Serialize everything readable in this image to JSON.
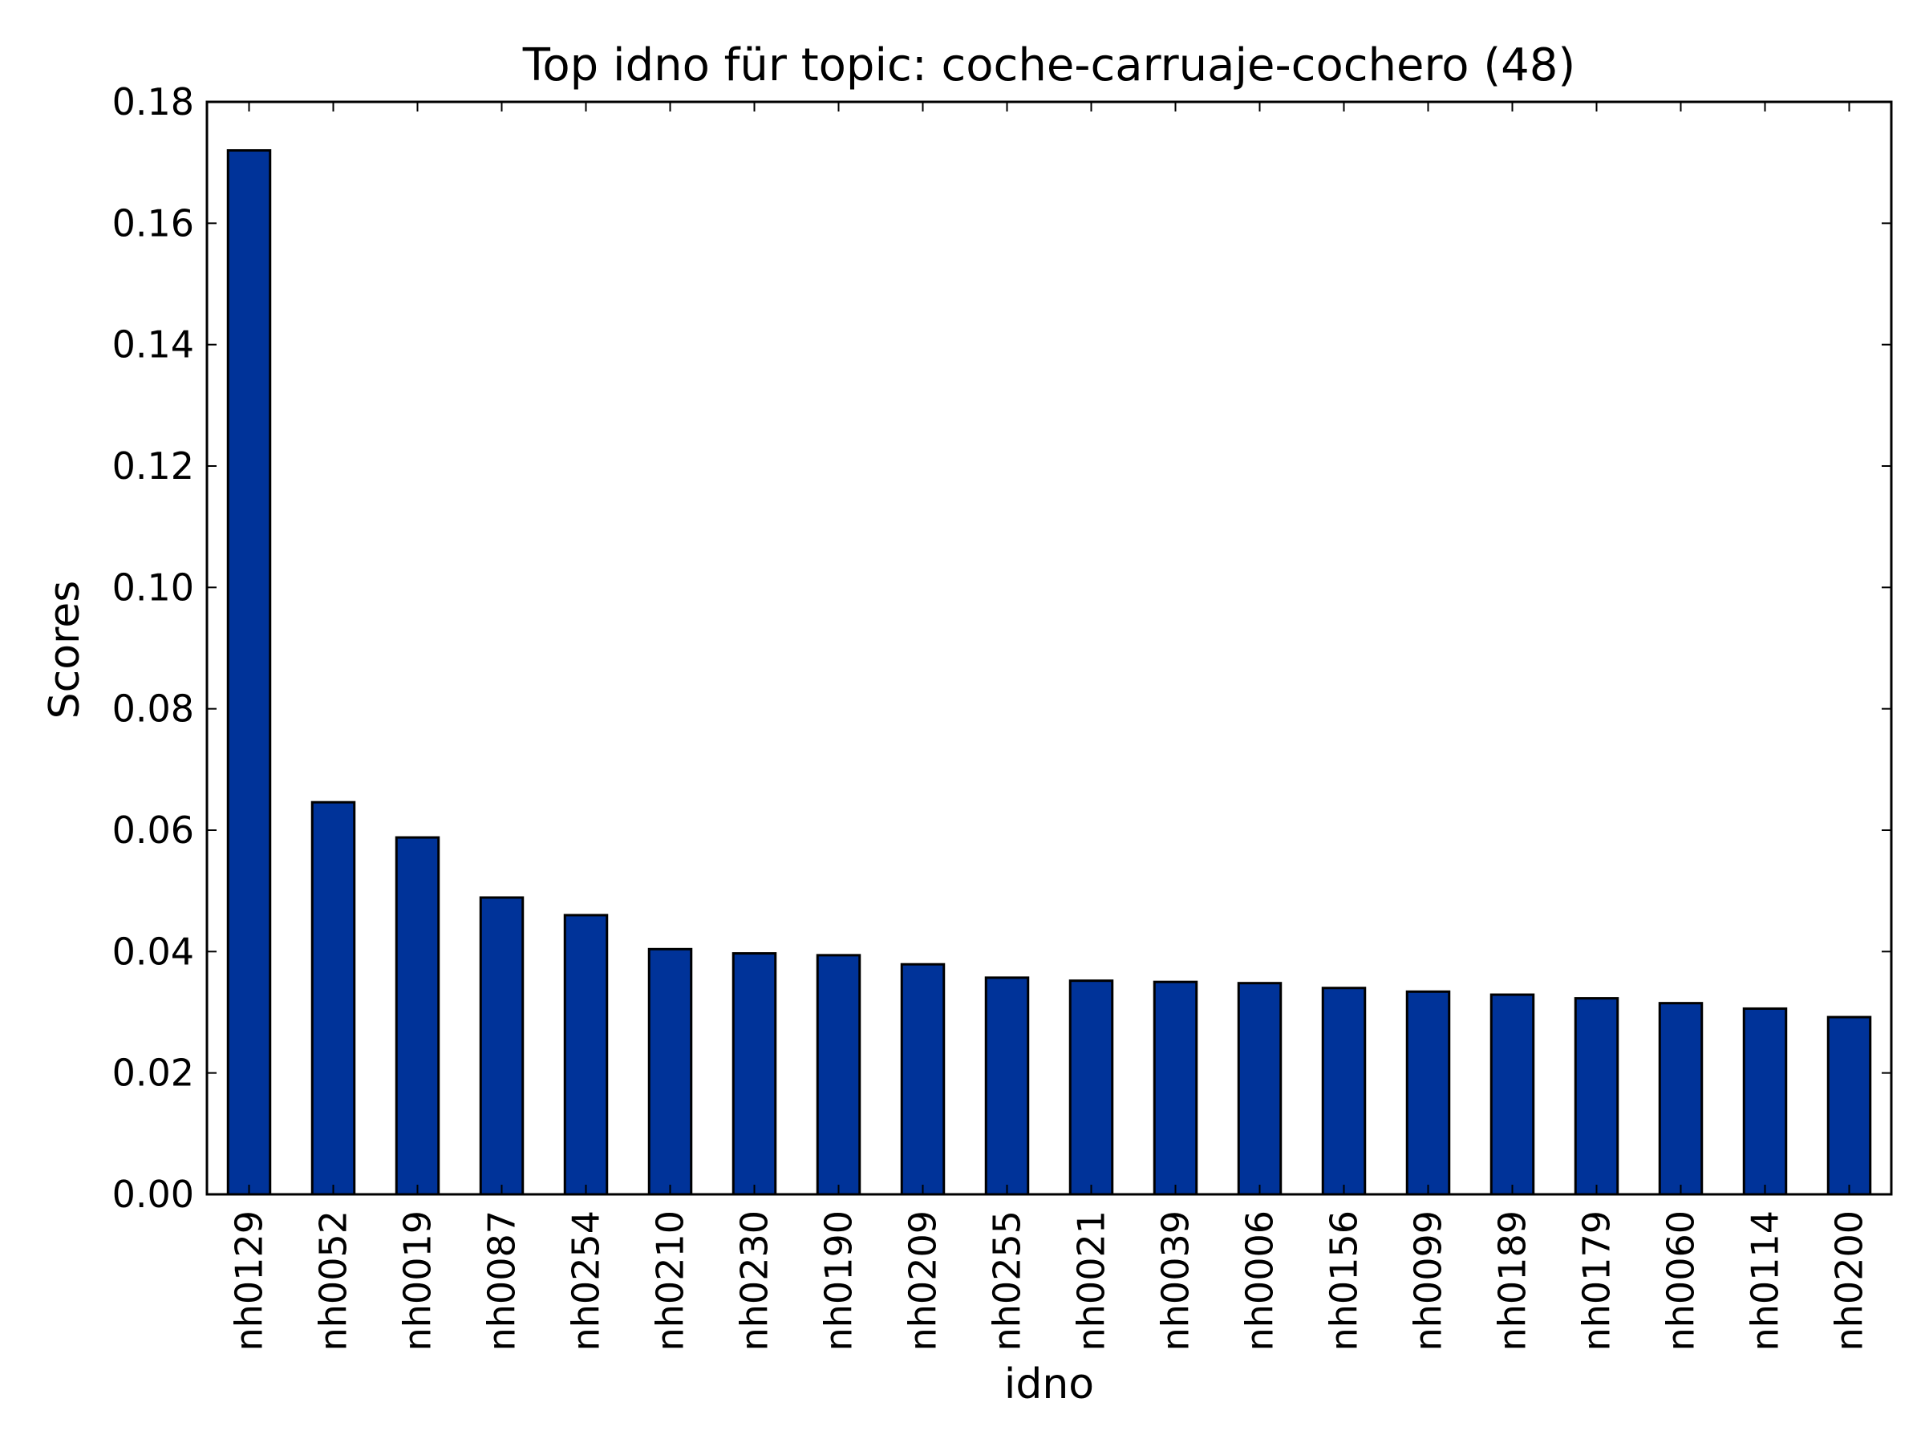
{
  "chart_data": {
    "type": "bar",
    "title": "Top idno für topic: coche-carruaje-cochero (48)",
    "xlabel": "idno",
    "ylabel": "Scores",
    "ylim": [
      0,
      0.18
    ],
    "yticks": [
      "0.00",
      "0.02",
      "0.04",
      "0.06",
      "0.08",
      "0.10",
      "0.12",
      "0.14",
      "0.16",
      "0.18"
    ],
    "categories": [
      "nh0129",
      "nh0052",
      "nh0019",
      "nh0087",
      "nh0254",
      "nh0210",
      "nh0230",
      "nh0190",
      "nh0209",
      "nh0255",
      "nh0021",
      "nh0039",
      "nh0006",
      "nh0156",
      "nh0099",
      "nh0189",
      "nh0179",
      "nh0060",
      "nh0114",
      "nh0200"
    ],
    "values": [
      0.172,
      0.0646,
      0.0588,
      0.0489,
      0.046,
      0.0404,
      0.0397,
      0.0394,
      0.0379,
      0.0357,
      0.0352,
      0.035,
      0.0348,
      0.034,
      0.0334,
      0.0329,
      0.0323,
      0.0315,
      0.0306,
      0.0292
    ],
    "bar_color": "#003399",
    "grid": false,
    "legend": false
  }
}
